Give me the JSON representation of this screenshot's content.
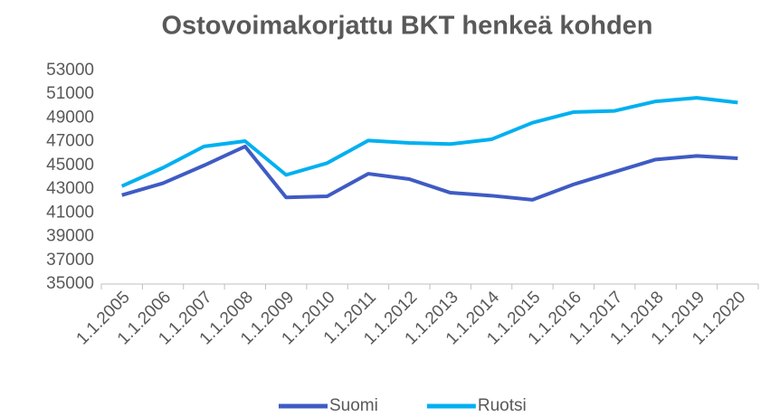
{
  "chart_data": {
    "type": "line",
    "title": "Ostovoimakorjattu BKT henkeä kohden",
    "categories": [
      "1.1.2005",
      "1.1.2006",
      "1.1.2007",
      "1.1.2008",
      "1.1.2009",
      "1.1.2010",
      "1.1.2011",
      "1.1.2012",
      "1.1.2013",
      "1.1.2014",
      "1.1.2015",
      "1.1.2016",
      "1.1.2017",
      "1.1.2018",
      "1.1.2019",
      "1.1.2020"
    ],
    "series": [
      {
        "name": "Suomi",
        "color": "#3f5bc4",
        "values": [
          42500,
          43500,
          45000,
          46600,
          42300,
          42400,
          44300,
          43850,
          42700,
          42450,
          42100,
          43400,
          44450,
          45500,
          45800,
          45600
        ]
      },
      {
        "name": "Ruotsi",
        "color": "#00b0f0",
        "values": [
          43250,
          44800,
          46600,
          47050,
          44200,
          45200,
          47100,
          46900,
          46800,
          47200,
          48600,
          49500,
          49600,
          50400,
          50700,
          50300
        ]
      }
    ],
    "ylim": [
      35000,
      53000
    ],
    "yticks": [
      35000,
      37000,
      39000,
      41000,
      43000,
      45000,
      47000,
      49000,
      51000,
      53000
    ],
    "grid": false,
    "legend": "bottom"
  }
}
